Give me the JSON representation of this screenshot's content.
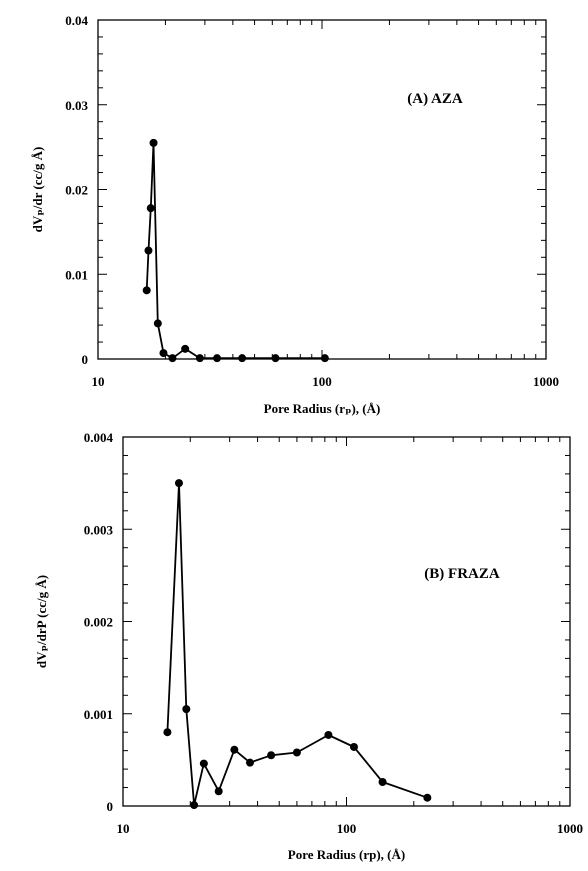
{
  "chart_data": [
    {
      "type": "line",
      "panel_label": "(A) AZA",
      "xlabel": "Pore Radius (rₚ),  (Å)",
      "ylabel": "dVₚ/dr  (cc/g Å)",
      "xscale": "log",
      "xlim": [
        10,
        1000
      ],
      "ylim": [
        0,
        0.04
      ],
      "x_ticks": [
        10,
        100,
        1000
      ],
      "x_tick_labels": [
        "10",
        "100",
        "1000"
      ],
      "y_ticks": [
        0,
        0.01,
        0.02,
        0.03,
        0.04
      ],
      "y_tick_labels": [
        "0",
        "0.01",
        "0.02",
        "0.03",
        "0.04"
      ],
      "grid": false,
      "legend": "none",
      "series": [
        {
          "points": [
            [
              16.5,
              0.0081
            ],
            [
              16.8,
              0.0128
            ],
            [
              17.2,
              0.0178
            ],
            [
              17.7,
              0.0255
            ],
            [
              18.5,
              0.0042
            ],
            [
              19.6,
              0.0007
            ],
            [
              21.5,
              0.0001
            ],
            [
              24.5,
              0.0012
            ],
            [
              28.5,
              0.0001
            ],
            [
              34.0,
              0.0001
            ],
            [
              44.0,
              0.0001
            ],
            [
              62.0,
              0.0001
            ],
            [
              103.0,
              0.0001
            ]
          ]
        }
      ]
    },
    {
      "type": "line",
      "panel_label": "(B) FRAZA",
      "xlabel": "Pore Radius  (rp),  (Å)",
      "ylabel": "dVₚ/drP (cc/g Å)",
      "xscale": "log",
      "xlim": [
        10,
        1000
      ],
      "ylim": [
        0,
        0.004
      ],
      "x_ticks": [
        10,
        100,
        1000
      ],
      "x_tick_labels": [
        "10",
        "100",
        "1000"
      ],
      "y_ticks": [
        0,
        0.001,
        0.002,
        0.003,
        0.004
      ],
      "y_tick_labels": [
        "0",
        "0.001",
        "0.002",
        "0.003",
        "0.004"
      ],
      "grid": false,
      "legend": "none",
      "series": [
        {
          "points": [
            [
              15.8,
              0.0008
            ],
            [
              17.8,
              0.0035
            ],
            [
              19.2,
              0.00105
            ],
            [
              20.8,
              1e-05
            ],
            [
              23.0,
              0.00046
            ],
            [
              26.8,
              0.00016
            ],
            [
              31.5,
              0.00061
            ],
            [
              37.0,
              0.00047
            ],
            [
              46.0,
              0.00055
            ],
            [
              60.0,
              0.00058
            ],
            [
              83.0,
              0.00077
            ],
            [
              108.0,
              0.00064
            ],
            [
              145.0,
              0.00026
            ],
            [
              230.0,
              9e-05
            ]
          ]
        }
      ]
    }
  ]
}
